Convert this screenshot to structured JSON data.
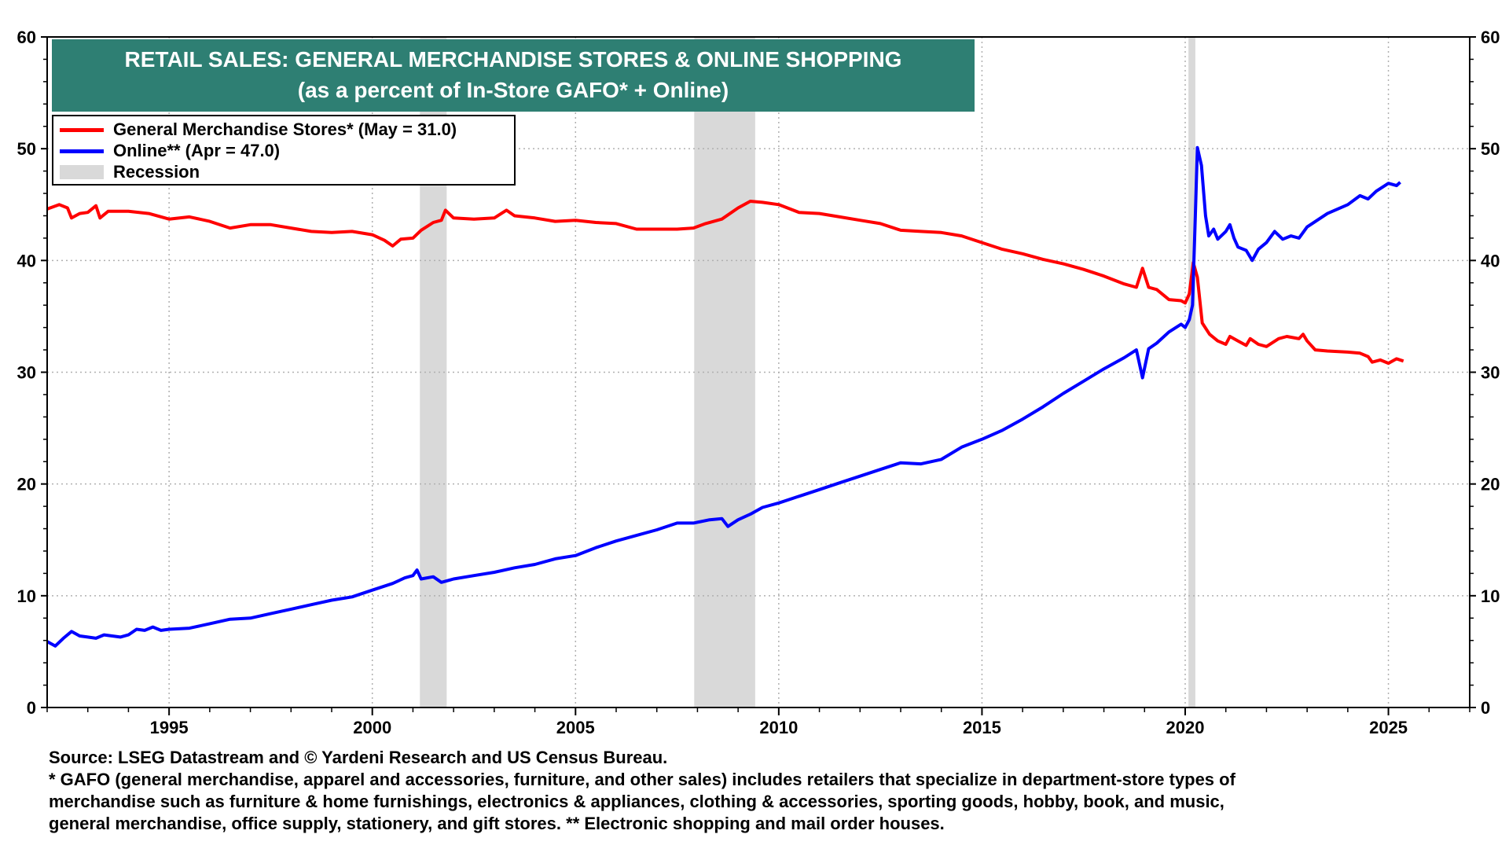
{
  "chart_data": {
    "type": "line",
    "title": "RETAIL SALES: GENERAL MERCHANDISE STORES & ONLINE SHOPPING",
    "subtitle": "(as a percent of In-Store GAFO* + Online)",
    "xlim": [
      1992,
      2027
    ],
    "x_ticks": [
      1995,
      2000,
      2005,
      2010,
      2015,
      2020,
      2025
    ],
    "ylim": [
      0,
      60
    ],
    "y_ticks": [
      0,
      10,
      20,
      30,
      40,
      50,
      60
    ],
    "grid": true,
    "legend_position": "top-left",
    "recessions": [
      [
        2001.17,
        2001.83
      ],
      [
        2007.92,
        2009.42
      ],
      [
        2020.08,
        2020.25
      ]
    ],
    "series": [
      {
        "name": "General Merchandise Stores* (May = 31.0)",
        "color": "#ff0000",
        "points": [
          [
            1992.0,
            44.6
          ],
          [
            1992.3,
            45.0
          ],
          [
            1992.5,
            44.7
          ],
          [
            1992.6,
            43.8
          ],
          [
            1992.8,
            44.2
          ],
          [
            1993.0,
            44.3
          ],
          [
            1993.2,
            44.9
          ],
          [
            1993.3,
            43.8
          ],
          [
            1993.5,
            44.4
          ],
          [
            1994.0,
            44.4
          ],
          [
            1994.5,
            44.2
          ],
          [
            1995.0,
            43.7
          ],
          [
            1995.5,
            43.9
          ],
          [
            1996.0,
            43.5
          ],
          [
            1996.5,
            42.9
          ],
          [
            1997.0,
            43.2
          ],
          [
            1997.5,
            43.2
          ],
          [
            1998.0,
            42.9
          ],
          [
            1998.5,
            42.6
          ],
          [
            1999.0,
            42.5
          ],
          [
            1999.5,
            42.6
          ],
          [
            2000.0,
            42.3
          ],
          [
            2000.3,
            41.8
          ],
          [
            2000.5,
            41.3
          ],
          [
            2000.7,
            41.9
          ],
          [
            2001.0,
            42.0
          ],
          [
            2001.2,
            42.7
          ],
          [
            2001.5,
            43.4
          ],
          [
            2001.7,
            43.6
          ],
          [
            2001.8,
            44.5
          ],
          [
            2002.0,
            43.8
          ],
          [
            2002.5,
            43.7
          ],
          [
            2003.0,
            43.8
          ],
          [
            2003.3,
            44.5
          ],
          [
            2003.5,
            44.0
          ],
          [
            2004.0,
            43.8
          ],
          [
            2004.5,
            43.5
          ],
          [
            2005.0,
            43.6
          ],
          [
            2005.5,
            43.4
          ],
          [
            2006.0,
            43.3
          ],
          [
            2006.5,
            42.8
          ],
          [
            2007.0,
            42.8
          ],
          [
            2007.5,
            42.8
          ],
          [
            2007.9,
            42.9
          ],
          [
            2008.2,
            43.3
          ],
          [
            2008.6,
            43.7
          ],
          [
            2009.0,
            44.7
          ],
          [
            2009.3,
            45.3
          ],
          [
            2009.6,
            45.2
          ],
          [
            2010.0,
            45.0
          ],
          [
            2010.5,
            44.3
          ],
          [
            2011.0,
            44.2
          ],
          [
            2011.5,
            43.9
          ],
          [
            2012.0,
            43.6
          ],
          [
            2012.5,
            43.3
          ],
          [
            2013.0,
            42.7
          ],
          [
            2013.5,
            42.6
          ],
          [
            2014.0,
            42.5
          ],
          [
            2014.5,
            42.2
          ],
          [
            2015.0,
            41.6
          ],
          [
            2015.5,
            41.0
          ],
          [
            2016.0,
            40.6
          ],
          [
            2016.5,
            40.1
          ],
          [
            2017.0,
            39.7
          ],
          [
            2017.5,
            39.2
          ],
          [
            2018.0,
            38.6
          ],
          [
            2018.5,
            37.9
          ],
          [
            2018.8,
            37.6
          ],
          [
            2018.95,
            39.3
          ],
          [
            2019.1,
            37.6
          ],
          [
            2019.3,
            37.4
          ],
          [
            2019.6,
            36.5
          ],
          [
            2019.9,
            36.4
          ],
          [
            2020.0,
            36.2
          ],
          [
            2020.1,
            37.0
          ],
          [
            2020.2,
            39.8
          ],
          [
            2020.3,
            38.5
          ],
          [
            2020.42,
            34.4
          ],
          [
            2020.6,
            33.4
          ],
          [
            2020.8,
            32.8
          ],
          [
            2021.0,
            32.5
          ],
          [
            2021.1,
            33.2
          ],
          [
            2021.3,
            32.8
          ],
          [
            2021.5,
            32.4
          ],
          [
            2021.6,
            33.0
          ],
          [
            2021.8,
            32.5
          ],
          [
            2022.0,
            32.3
          ],
          [
            2022.3,
            33.0
          ],
          [
            2022.5,
            33.2
          ],
          [
            2022.8,
            33.0
          ],
          [
            2022.9,
            33.4
          ],
          [
            2023.0,
            32.8
          ],
          [
            2023.2,
            32.0
          ],
          [
            2023.5,
            31.9
          ],
          [
            2024.0,
            31.8
          ],
          [
            2024.3,
            31.7
          ],
          [
            2024.5,
            31.4
          ],
          [
            2024.6,
            30.9
          ],
          [
            2024.8,
            31.1
          ],
          [
            2025.0,
            30.8
          ],
          [
            2025.2,
            31.2
          ],
          [
            2025.37,
            31.0
          ]
        ]
      },
      {
        "name": "Online**  (Apr = 47.0)",
        "color": "#0000ff",
        "points": [
          [
            1992.0,
            5.9
          ],
          [
            1992.2,
            5.5
          ],
          [
            1992.4,
            6.2
          ],
          [
            1992.6,
            6.8
          ],
          [
            1992.8,
            6.4
          ],
          [
            1993.0,
            6.3
          ],
          [
            1993.2,
            6.2
          ],
          [
            1993.4,
            6.5
          ],
          [
            1993.6,
            6.4
          ],
          [
            1993.8,
            6.3
          ],
          [
            1994.0,
            6.5
          ],
          [
            1994.2,
            7.0
          ],
          [
            1994.4,
            6.9
          ],
          [
            1994.6,
            7.2
          ],
          [
            1994.8,
            6.9
          ],
          [
            1995.0,
            7.0
          ],
          [
            1995.5,
            7.1
          ],
          [
            1996.0,
            7.5
          ],
          [
            1996.5,
            7.9
          ],
          [
            1997.0,
            8.0
          ],
          [
            1997.5,
            8.4
          ],
          [
            1998.0,
            8.8
          ],
          [
            1998.5,
            9.2
          ],
          [
            1999.0,
            9.6
          ],
          [
            1999.5,
            9.9
          ],
          [
            2000.0,
            10.5
          ],
          [
            2000.5,
            11.1
          ],
          [
            2000.8,
            11.6
          ],
          [
            2001.0,
            11.8
          ],
          [
            2001.1,
            12.3
          ],
          [
            2001.2,
            11.5
          ],
          [
            2001.5,
            11.7
          ],
          [
            2001.7,
            11.2
          ],
          [
            2001.9,
            11.4
          ],
          [
            2002.0,
            11.5
          ],
          [
            2002.5,
            11.8
          ],
          [
            2003.0,
            12.1
          ],
          [
            2003.5,
            12.5
          ],
          [
            2004.0,
            12.8
          ],
          [
            2004.5,
            13.3
          ],
          [
            2005.0,
            13.6
          ],
          [
            2005.5,
            14.3
          ],
          [
            2006.0,
            14.9
          ],
          [
            2006.5,
            15.4
          ],
          [
            2007.0,
            15.9
          ],
          [
            2007.5,
            16.5
          ],
          [
            2007.9,
            16.5
          ],
          [
            2008.3,
            16.8
          ],
          [
            2008.6,
            16.9
          ],
          [
            2008.75,
            16.2
          ],
          [
            2009.0,
            16.8
          ],
          [
            2009.3,
            17.3
          ],
          [
            2009.6,
            17.9
          ],
          [
            2010.0,
            18.3
          ],
          [
            2010.5,
            18.9
          ],
          [
            2011.0,
            19.5
          ],
          [
            2011.5,
            20.1
          ],
          [
            2012.0,
            20.7
          ],
          [
            2012.5,
            21.3
          ],
          [
            2013.0,
            21.9
          ],
          [
            2013.5,
            21.8
          ],
          [
            2014.0,
            22.2
          ],
          [
            2014.5,
            23.3
          ],
          [
            2015.0,
            24.0
          ],
          [
            2015.5,
            24.8
          ],
          [
            2016.0,
            25.8
          ],
          [
            2016.5,
            26.9
          ],
          [
            2017.0,
            28.1
          ],
          [
            2017.5,
            29.2
          ],
          [
            2018.0,
            30.3
          ],
          [
            2018.5,
            31.3
          ],
          [
            2018.8,
            32.0
          ],
          [
            2018.95,
            29.5
          ],
          [
            2019.1,
            32.1
          ],
          [
            2019.3,
            32.6
          ],
          [
            2019.6,
            33.6
          ],
          [
            2019.9,
            34.3
          ],
          [
            2020.0,
            34.0
          ],
          [
            2020.1,
            34.7
          ],
          [
            2020.18,
            36.0
          ],
          [
            2020.25,
            44.0
          ],
          [
            2020.3,
            50.1
          ],
          [
            2020.4,
            48.5
          ],
          [
            2020.5,
            44.0
          ],
          [
            2020.58,
            42.2
          ],
          [
            2020.7,
            42.8
          ],
          [
            2020.8,
            41.9
          ],
          [
            2021.0,
            42.6
          ],
          [
            2021.1,
            43.2
          ],
          [
            2021.2,
            42.0
          ],
          [
            2021.3,
            41.2
          ],
          [
            2021.5,
            40.9
          ],
          [
            2021.65,
            40.0
          ],
          [
            2021.8,
            41.0
          ],
          [
            2022.0,
            41.6
          ],
          [
            2022.2,
            42.6
          ],
          [
            2022.4,
            41.9
          ],
          [
            2022.6,
            42.2
          ],
          [
            2022.8,
            42.0
          ],
          [
            2023.0,
            43.0
          ],
          [
            2023.5,
            44.2
          ],
          [
            2024.0,
            45.0
          ],
          [
            2024.3,
            45.8
          ],
          [
            2024.5,
            45.5
          ],
          [
            2024.7,
            46.2
          ],
          [
            2025.0,
            46.9
          ],
          [
            2025.2,
            46.7
          ],
          [
            2025.29,
            47.0
          ]
        ]
      }
    ]
  },
  "title_box": {
    "line1": "RETAIL SALES: GENERAL MERCHANDISE STORES & ONLINE SHOPPING",
    "line2": "(as a percent of In-Store GAFO* + Online)",
    "color": "#2e7f73"
  },
  "legend": {
    "items": [
      {
        "label": "General Merchandise Stores* (May = 31.0)",
        "color": "#ff0000"
      },
      {
        "label": "Online**  (Apr = 47.0)",
        "color": "#0000ff"
      },
      {
        "label": "Recession",
        "color": "#d9d9d9"
      }
    ]
  },
  "footnotes": {
    "line1": "Source: LSEG Datastream and © Yardeni Research and US Census Bureau.",
    "line2": "* GAFO (general merchandise, apparel and accessories, furniture, and other sales) includes retailers that specialize in department-store types of",
    "line3": "merchandise such as furniture & home furnishings, electronics & appliances, clothing & accessories, sporting goods, hobby, book, and music,",
    "line4": "general merchandise, office supply, stationery, and gift stores. ** Electronic shopping and mail order houses."
  }
}
